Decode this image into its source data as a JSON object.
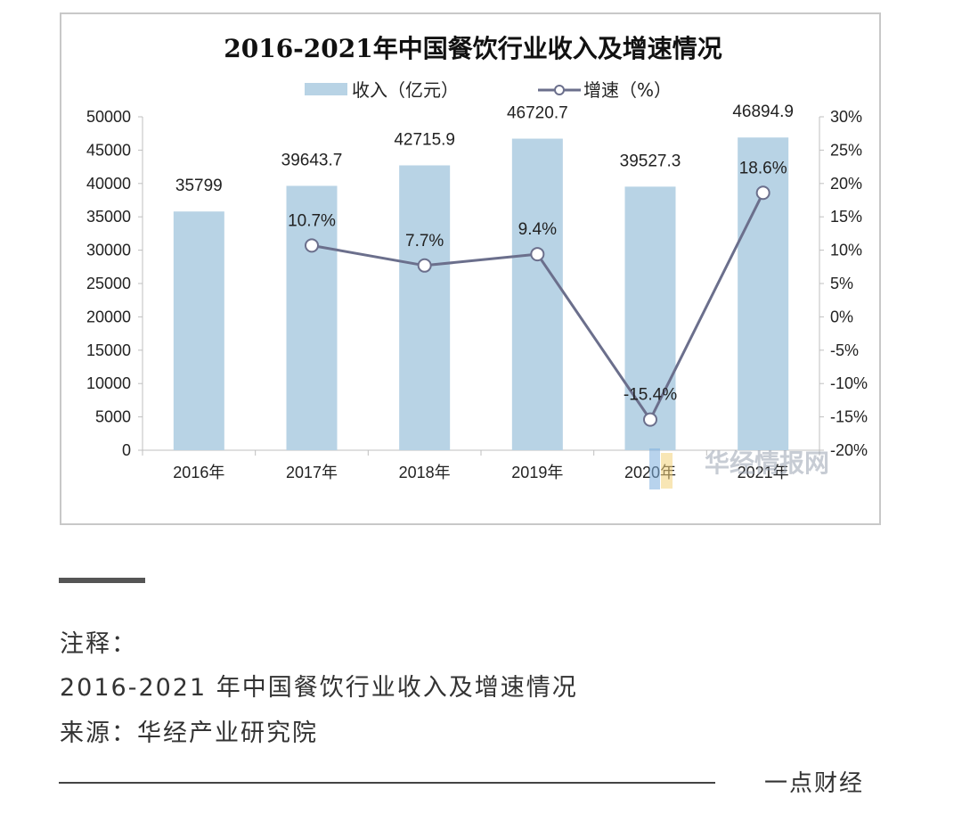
{
  "chart_data": {
    "type": "bar",
    "title": "2016-2021年中国餐饮行业收入及增速情况",
    "categories": [
      "2016年",
      "2017年",
      "2018年",
      "2019年",
      "2020年",
      "2021年"
    ],
    "series": [
      {
        "name": "收入（亿元）",
        "type": "bar",
        "axis": "left",
        "values": [
          35799,
          39643.7,
          42715.9,
          46720.7,
          39527.3,
          46894.9
        ],
        "labels": [
          "35799",
          "39643.7",
          "42715.9",
          "46720.7",
          "39527.3",
          "46894.9"
        ],
        "color": "#b8d3e5"
      },
      {
        "name": "增速（%）",
        "type": "line",
        "axis": "right",
        "values": [
          null,
          10.7,
          7.7,
          9.4,
          -15.4,
          18.6
        ],
        "labels": [
          "",
          "10.7%",
          "7.7%",
          "9.4%",
          "-15.4%",
          "18.6%"
        ],
        "color": "#6b6f8c"
      }
    ],
    "y_left": {
      "ylim": [
        0,
        50000
      ],
      "ticks": [
        "0",
        "5000",
        "10000",
        "15000",
        "20000",
        "25000",
        "30000",
        "35000",
        "40000",
        "45000",
        "50000"
      ]
    },
    "y_right": {
      "ylim": [
        -20,
        30
      ],
      "ticks": [
        "-20%",
        "-15%",
        "-10%",
        "-5%",
        "0%",
        "5%",
        "10%",
        "15%",
        "20%",
        "25%",
        "30%"
      ]
    },
    "legend_position": "top",
    "grid": false
  },
  "watermark": "华经情报网",
  "note": {
    "heading": "注释：",
    "line1": "2016-2021 年中国餐饮行业收入及增速情况",
    "line2": "来源：华经产业研究院"
  },
  "brand": "一点财经"
}
